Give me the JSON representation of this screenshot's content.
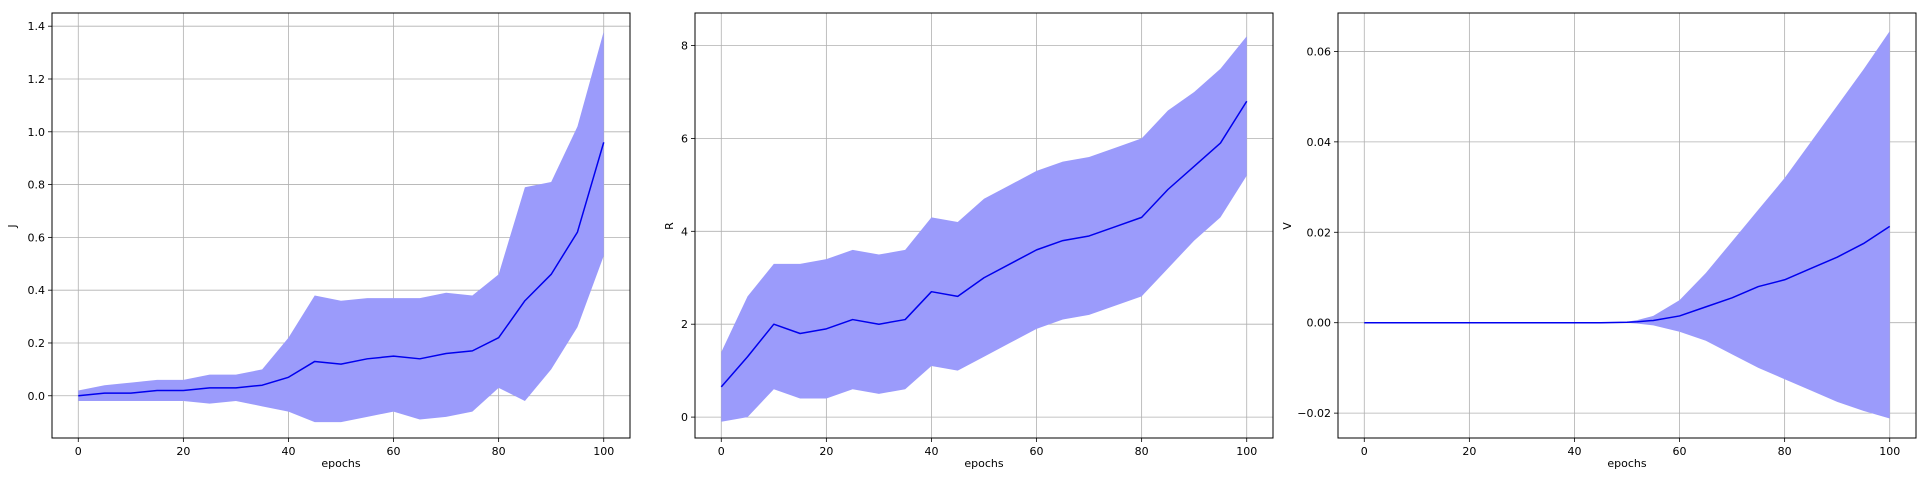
{
  "figure": {
    "band_color": "#9b9bfb",
    "line_color": "#0000ee"
  },
  "chart_data": [
    {
      "type": "line",
      "xlabel": "epochs",
      "ylabel": "J",
      "xlim": [
        -5,
        105
      ],
      "ylim": [
        -0.16,
        1.45
      ],
      "xticks": [
        0,
        20,
        40,
        60,
        80,
        100
      ],
      "xtick_labels": [
        "0",
        "20",
        "40",
        "60",
        "80",
        "100"
      ],
      "yticks": [
        0.0,
        0.2,
        0.4,
        0.6,
        0.8,
        1.0,
        1.2,
        1.4
      ],
      "ytick_labels": [
        "0.0",
        "0.2",
        "0.4",
        "0.6",
        "0.8",
        "1.0",
        "1.2",
        "1.4"
      ],
      "grid": true,
      "series": [
        {
          "x": [
            0,
            5,
            10,
            15,
            20,
            25,
            30,
            35,
            40,
            45,
            50,
            55,
            60,
            65,
            70,
            75,
            80,
            85,
            90,
            95,
            100
          ],
          "mean": [
            0.0,
            0.01,
            0.01,
            0.02,
            0.02,
            0.03,
            0.03,
            0.04,
            0.07,
            0.13,
            0.12,
            0.14,
            0.15,
            0.14,
            0.16,
            0.17,
            0.22,
            0.36,
            0.46,
            0.62,
            0.96
          ],
          "upper": [
            0.02,
            0.04,
            0.05,
            0.06,
            0.06,
            0.08,
            0.08,
            0.1,
            0.22,
            0.38,
            0.36,
            0.37,
            0.37,
            0.37,
            0.39,
            0.38,
            0.46,
            0.79,
            0.81,
            1.02,
            1.38
          ],
          "lower": [
            -0.02,
            -0.02,
            -0.02,
            -0.02,
            -0.02,
            -0.03,
            -0.02,
            -0.04,
            -0.06,
            -0.1,
            -0.1,
            -0.08,
            -0.06,
            -0.09,
            -0.08,
            -0.06,
            0.03,
            -0.02,
            0.1,
            0.26,
            0.53
          ]
        }
      ]
    },
    {
      "type": "line",
      "xlabel": "epochs",
      "ylabel": "R",
      "xlim": [
        -5,
        105
      ],
      "ylim": [
        -0.45,
        8.7
      ],
      "xticks": [
        0,
        20,
        40,
        60,
        80,
        100
      ],
      "xtick_labels": [
        "0",
        "20",
        "40",
        "60",
        "80",
        "100"
      ],
      "yticks": [
        0,
        2,
        4,
        6,
        8
      ],
      "ytick_labels": [
        "0",
        "2",
        "4",
        "6",
        "8"
      ],
      "grid": true,
      "series": [
        {
          "x": [
            0,
            5,
            10,
            15,
            20,
            25,
            30,
            35,
            40,
            45,
            50,
            55,
            60,
            65,
            70,
            75,
            80,
            85,
            90,
            95,
            100
          ],
          "mean": [
            0.65,
            1.3,
            2.0,
            1.8,
            1.9,
            2.1,
            2.0,
            2.1,
            2.7,
            2.6,
            3.0,
            3.3,
            3.6,
            3.8,
            3.9,
            4.1,
            4.3,
            4.9,
            5.4,
            5.9,
            6.8
          ],
          "upper": [
            1.4,
            2.6,
            3.3,
            3.3,
            3.4,
            3.6,
            3.5,
            3.6,
            4.3,
            4.2,
            4.7,
            5.0,
            5.3,
            5.5,
            5.6,
            5.8,
            6.0,
            6.6,
            7.0,
            7.5,
            8.2
          ],
          "lower": [
            -0.1,
            0.0,
            0.6,
            0.4,
            0.4,
            0.6,
            0.5,
            0.6,
            1.1,
            1.0,
            1.3,
            1.6,
            1.9,
            2.1,
            2.2,
            2.4,
            2.6,
            3.2,
            3.8,
            4.3,
            5.2
          ]
        }
      ]
    },
    {
      "type": "line",
      "xlabel": "epochs",
      "ylabel": "V",
      "xlim": [
        -5,
        105
      ],
      "ylim": [
        -0.0255,
        0.0685
      ],
      "xticks": [
        0,
        20,
        40,
        60,
        80,
        100
      ],
      "xtick_labels": [
        "0",
        "20",
        "40",
        "60",
        "80",
        "100"
      ],
      "yticks": [
        -0.02,
        0.0,
        0.02,
        0.04,
        0.06
      ],
      "ytick_labels": [
        "−0.02",
        "0.00",
        "0.02",
        "0.04",
        "0.06"
      ],
      "grid": true,
      "series": [
        {
          "x": [
            0,
            10,
            20,
            30,
            40,
            45,
            50,
            52,
            55,
            60,
            65,
            70,
            75,
            80,
            85,
            90,
            95,
            100
          ],
          "mean": [
            0.0,
            0.0,
            0.0,
            0.0,
            0.0,
            0.0,
            0.0001,
            0.0002,
            0.0005,
            0.0015,
            0.0035,
            0.0055,
            0.008,
            0.0095,
            0.012,
            0.0145,
            0.0175,
            0.0213
          ],
          "upper": [
            0.0,
            0.0,
            0.0,
            0.0,
            0.0,
            0.0,
            0.0002,
            0.0006,
            0.0015,
            0.005,
            0.011,
            0.018,
            0.025,
            0.032,
            0.04,
            0.048,
            0.056,
            0.0645
          ],
          "lower": [
            0.0,
            0.0,
            0.0,
            0.0,
            0.0,
            0.0,
            0.0,
            -0.0002,
            -0.0006,
            -0.002,
            -0.004,
            -0.007,
            -0.01,
            -0.0125,
            -0.015,
            -0.0175,
            -0.0195,
            -0.0212
          ]
        }
      ]
    }
  ]
}
